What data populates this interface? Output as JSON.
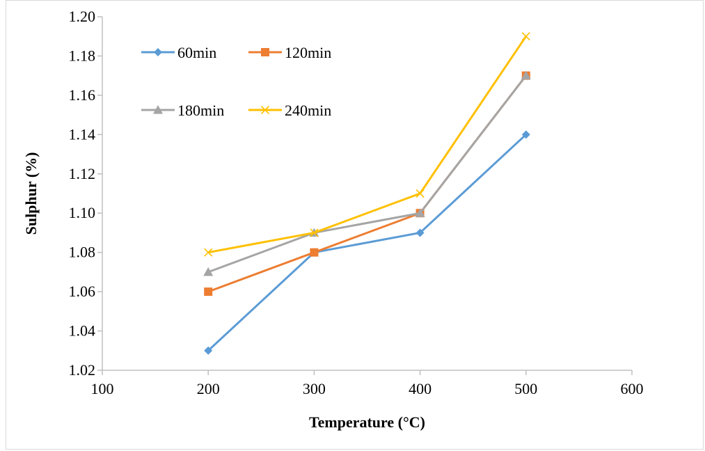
{
  "chart_data": {
    "type": "line",
    "title": "",
    "xlabel": "Temperature (°C)",
    "ylabel": "Sulphur (%)",
    "xlim": [
      100,
      600
    ],
    "ylim": [
      1.02,
      1.2
    ],
    "x_ticks": [
      "100",
      "200",
      "300",
      "400",
      "500",
      "600"
    ],
    "y_ticks": [
      "1.02",
      "1.04",
      "1.06",
      "1.08",
      "1.10",
      "1.12",
      "1.14",
      "1.16",
      "1.18",
      "1.20"
    ],
    "grid": false,
    "legend_position": "top-left",
    "x": [
      200,
      300,
      400,
      500
    ],
    "series": [
      {
        "name": "60min",
        "values": [
          1.03,
          1.08,
          1.09,
          1.14
        ],
        "color": "#5b9bd5",
        "marker": "diamond"
      },
      {
        "name": "120min",
        "values": [
          1.06,
          1.08,
          1.1,
          1.17
        ],
        "color": "#ed7d31",
        "marker": "square"
      },
      {
        "name": "180min",
        "values": [
          1.07,
          1.09,
          1.1,
          1.17
        ],
        "color": "#a5a5a5",
        "marker": "triangle"
      },
      {
        "name": "240min",
        "values": [
          1.08,
          1.09,
          1.11,
          1.19
        ],
        "color": "#ffc000",
        "marker": "x"
      }
    ]
  }
}
